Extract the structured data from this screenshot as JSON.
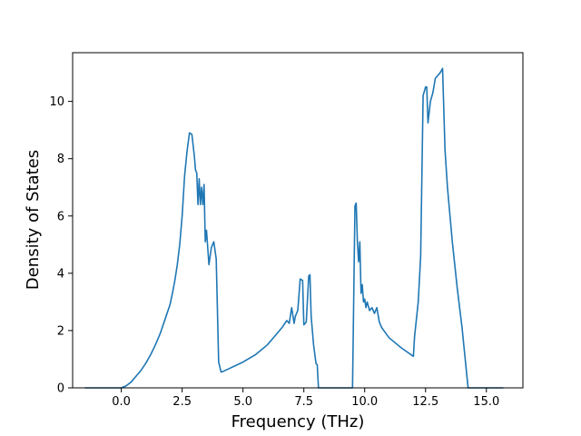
{
  "chart_data": {
    "type": "line",
    "xlabel": "Frequency (THz)",
    "ylabel": "Density of States",
    "xlim": [
      -2.0,
      16.5
    ],
    "ylim": [
      0,
      11.7
    ],
    "xticks": [
      0.0,
      2.5,
      5.0,
      7.5,
      10.0,
      12.5,
      15.0
    ],
    "xtick_labels": [
      "0.0",
      "2.5",
      "5.0",
      "7.5",
      "10.0",
      "12.5",
      "15.0"
    ],
    "yticks": [
      0,
      2,
      4,
      6,
      8,
      10
    ],
    "ytick_labels": [
      "0",
      "2",
      "4",
      "6",
      "8",
      "10"
    ],
    "grid": false,
    "line_color": "#1f77b4",
    "series": [
      {
        "x": [
          -1.5,
          -0.5,
          0.0,
          0.2,
          0.4,
          0.6,
          0.8,
          1.0,
          1.2,
          1.4,
          1.6,
          1.8,
          2.0,
          2.1,
          2.2,
          2.3,
          2.4,
          2.5,
          2.6,
          2.7,
          2.8,
          2.9,
          3.0,
          3.05,
          3.1,
          3.15,
          3.2,
          3.25,
          3.3,
          3.35,
          3.4,
          3.45,
          3.5,
          3.6,
          3.7,
          3.8,
          3.9,
          4.0,
          4.1,
          4.2,
          4.3,
          4.5,
          5.0,
          5.5,
          6.0,
          6.3,
          6.6,
          6.8,
          6.9,
          7.0,
          7.1,
          7.15,
          7.25,
          7.35,
          7.45,
          7.5,
          7.6,
          7.7,
          7.75,
          7.8,
          7.9,
          8.0,
          8.05,
          8.1,
          8.2,
          8.5,
          9.0,
          9.5,
          9.6,
          9.65,
          9.7,
          9.75,
          9.8,
          9.85,
          9.9,
          9.95,
          10.0,
          10.05,
          10.1,
          10.2,
          10.3,
          10.4,
          10.5,
          10.6,
          10.7,
          11.0,
          11.5,
          12.0,
          12.05,
          12.2,
          12.3,
          12.4,
          12.5,
          12.55,
          12.6,
          12.7,
          12.8,
          12.9,
          13.0,
          13.1,
          13.2,
          13.3,
          13.4,
          13.6,
          13.8,
          14.0,
          14.2,
          14.25,
          14.3,
          15.0,
          15.7
        ],
        "y": [
          0.0,
          0.0,
          0.0,
          0.07,
          0.2,
          0.4,
          0.6,
          0.85,
          1.15,
          1.5,
          1.9,
          2.4,
          2.9,
          3.3,
          3.75,
          4.3,
          5.0,
          6.0,
          7.4,
          8.25,
          8.9,
          8.85,
          8.1,
          7.6,
          7.5,
          6.4,
          7.3,
          6.4,
          7.0,
          6.4,
          7.1,
          5.1,
          5.5,
          4.3,
          4.9,
          5.1,
          4.5,
          0.9,
          0.55,
          0.58,
          0.62,
          0.7,
          0.9,
          1.15,
          1.5,
          1.8,
          2.1,
          2.35,
          2.25,
          2.8,
          2.25,
          2.5,
          2.7,
          3.8,
          3.75,
          2.2,
          2.3,
          3.9,
          3.95,
          2.5,
          1.5,
          0.85,
          0.8,
          0.0,
          0.0,
          0.0,
          0.0,
          0.0,
          6.35,
          6.45,
          5.1,
          4.4,
          5.1,
          3.3,
          3.6,
          3.0,
          3.1,
          2.8,
          3.0,
          2.7,
          2.8,
          2.6,
          2.8,
          2.3,
          2.1,
          1.75,
          1.4,
          1.1,
          1.8,
          3.0,
          4.6,
          10.2,
          10.5,
          10.5,
          9.25,
          10.0,
          10.3,
          10.8,
          10.9,
          11.0,
          11.15,
          8.3,
          7.0,
          5.1,
          3.5,
          2.1,
          0.4,
          0.0,
          0.0,
          0.0,
          0.0
        ]
      }
    ]
  }
}
